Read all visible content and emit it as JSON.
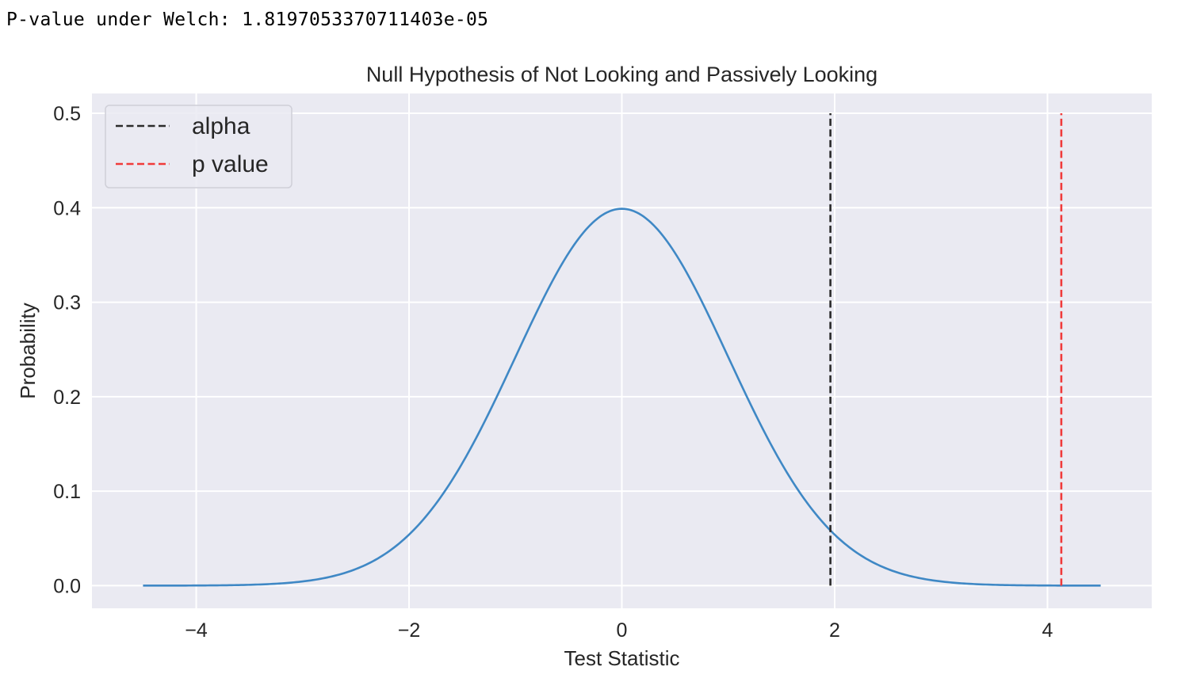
{
  "output": {
    "text": "P-value under Welch: 1.8197053370711403e-05"
  },
  "chart_data": {
    "type": "line",
    "title": "Null Hypothesis of Not Looking and Passively Looking",
    "xlabel": "Test Statistic",
    "ylabel": "Probability",
    "xlim": [
      -4.98,
      4.98
    ],
    "ylim": [
      -0.024,
      0.521
    ],
    "xticks": [
      -4,
      -2,
      0,
      2,
      4
    ],
    "xtick_labels": [
      "−4",
      "−2",
      "0",
      "2",
      "4"
    ],
    "yticks": [
      0.0,
      0.1,
      0.2,
      0.3,
      0.4,
      0.5
    ],
    "ytick_labels": [
      "0.0",
      "0.1",
      "0.2",
      "0.3",
      "0.4",
      "0.5"
    ],
    "grid": true,
    "legend_position": "upper-left",
    "series": [
      {
        "kind": "curve",
        "description_of_values": "standard normal density",
        "x_range": [
          -4.5,
          4.5
        ],
        "color": "#3f88c5"
      }
    ],
    "vlines": [
      {
        "name": "alpha",
        "x": 1.96,
        "ymax": 0.5,
        "color": "#2b2b2b"
      },
      {
        "name": "p value",
        "x": 4.13,
        "ymax": 0.5,
        "color": "#f03a3a"
      }
    ],
    "colors": {
      "plot_background": "#eaeaf2",
      "grid": "#ffffff"
    }
  }
}
